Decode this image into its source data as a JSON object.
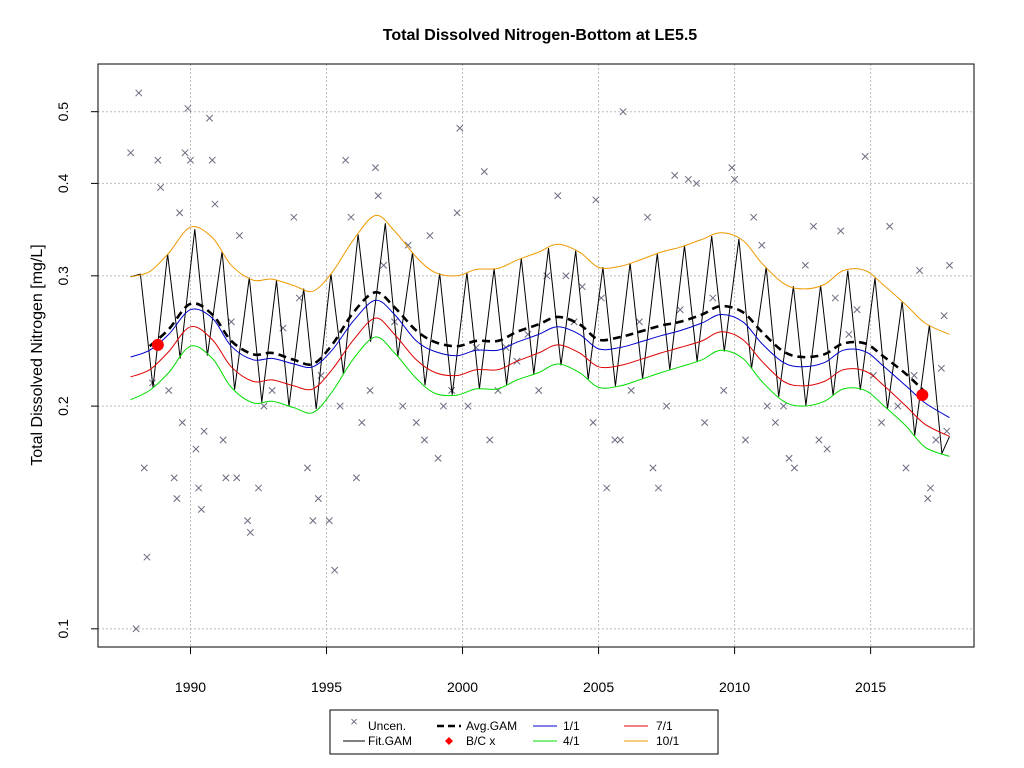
{
  "chart_data": {
    "type": "line",
    "title": "Total Dissolved Nitrogen-Bottom at LE5.5",
    "xlabel": "",
    "ylabel": "Total Dissolved Nitrogen [mg/L]",
    "x_scale": "linear",
    "y_scale": "log",
    "xlim": [
      1986.6,
      2018.8
    ],
    "ylim": [
      0.0945,
      0.58
    ],
    "x_ticks": [
      1990,
      1995,
      2000,
      2005,
      2010,
      2015
    ],
    "y_ticks": [
      0.1,
      0.2,
      0.3,
      0.4,
      0.5
    ],
    "y_tick_labels": [
      "0.1",
      "0.2",
      "0.3",
      "0.4",
      "0.5"
    ],
    "grid": true,
    "legend_placement": "bottom-center",
    "legend": {
      "uncen": "Uncen.",
      "fitgam": "Fit.GAM",
      "avggam": "Avg.GAM",
      "bcx": "B/C x",
      "s11": "1/1",
      "s41": "4/1",
      "s71": "7/1",
      "s101": "10/1"
    },
    "colors": {
      "uncen": "#6b6b80",
      "fit": "#000000",
      "avg": "#000000",
      "bc": "#ff0000",
      "jan": "#0000cc",
      "apr": "#00dd00",
      "jul": "#dd0000",
      "oct": "#ee9900",
      "grid": "#bebebe"
    },
    "smooth_x": [
      1987.8,
      1988.5,
      1989.2,
      1990.0,
      1990.8,
      1991.5,
      1992.3,
      1993.0,
      1993.8,
      1994.5,
      1995.2,
      1996.0,
      1996.8,
      1997.5,
      1998.3,
      1999.0,
      1999.8,
      2000.5,
      2001.3,
      2002.0,
      2002.8,
      2003.5,
      2004.3,
      2005.0,
      2005.8,
      2006.5,
      2007.3,
      2008.0,
      2008.8,
      2009.5,
      2010.3,
      2011.0,
      2011.8,
      2012.5,
      2013.3,
      2014.0,
      2014.8,
      2015.5,
      2016.3,
      2017.0,
      2017.9
    ],
    "series": [
      {
        "name": "Avg.GAM",
        "values": [
          null,
          0.241,
          0.254,
          0.275,
          0.266,
          0.245,
          0.235,
          0.236,
          0.231,
          0.228,
          0.242,
          0.268,
          0.285,
          0.272,
          0.253,
          0.244,
          0.241,
          0.245,
          0.245,
          0.252,
          0.258,
          0.264,
          0.258,
          0.246,
          0.248,
          0.252,
          0.257,
          0.26,
          0.266,
          0.273,
          0.268,
          0.252,
          0.237,
          0.233,
          0.235,
          0.243,
          0.243,
          0.233,
          0.221,
          0.209,
          null
        ]
      },
      {
        "name": "1/1",
        "values": [
          0.233,
          0.238,
          0.25,
          0.27,
          0.263,
          0.241,
          0.231,
          0.232,
          0.228,
          0.226,
          0.238,
          0.261,
          0.278,
          0.266,
          0.245,
          0.237,
          0.234,
          0.238,
          0.238,
          0.244,
          0.25,
          0.256,
          0.25,
          0.239,
          0.24,
          0.244,
          0.249,
          0.253,
          0.259,
          0.266,
          0.26,
          0.243,
          0.229,
          0.226,
          0.229,
          0.238,
          0.237,
          0.226,
          0.213,
          0.202,
          0.193
        ]
      },
      {
        "name": "4/1",
        "values": [
          0.204,
          0.21,
          0.222,
          0.241,
          0.232,
          0.212,
          0.202,
          0.203,
          0.199,
          0.196,
          0.209,
          0.232,
          0.248,
          0.236,
          0.218,
          0.208,
          0.207,
          0.211,
          0.211,
          0.217,
          0.222,
          0.228,
          0.222,
          0.212,
          0.213,
          0.217,
          0.222,
          0.226,
          0.231,
          0.238,
          0.232,
          0.216,
          0.203,
          0.2,
          0.203,
          0.211,
          0.21,
          0.2,
          0.188,
          0.176,
          0.171
        ]
      },
      {
        "name": "7/1",
        "values": [
          0.219,
          0.224,
          0.237,
          0.256,
          0.246,
          0.226,
          0.216,
          0.217,
          0.213,
          0.211,
          0.224,
          0.246,
          0.263,
          0.25,
          0.231,
          0.222,
          0.22,
          0.224,
          0.224,
          0.23,
          0.236,
          0.242,
          0.236,
          0.226,
          0.227,
          0.231,
          0.236,
          0.24,
          0.245,
          0.252,
          0.246,
          0.23,
          0.216,
          0.213,
          0.216,
          0.224,
          0.223,
          0.213,
          0.2,
          0.189,
          0.182
        ]
      },
      {
        "name": "10/1",
        "values": [
          0.299,
          0.304,
          0.322,
          0.349,
          0.338,
          0.31,
          0.296,
          0.297,
          0.291,
          0.286,
          0.303,
          0.336,
          0.362,
          0.345,
          0.318,
          0.303,
          0.3,
          0.306,
          0.307,
          0.315,
          0.323,
          0.331,
          0.323,
          0.308,
          0.309,
          0.315,
          0.323,
          0.328,
          0.336,
          0.343,
          0.335,
          0.312,
          0.293,
          0.288,
          0.292,
          0.305,
          0.305,
          0.291,
          0.274,
          0.259,
          0.25
        ]
      }
    ],
    "fit_gam": {
      "name": "Fit.GAM",
      "start_year": 1987.8,
      "end_year": 2017.9,
      "peak_phase": 0.16,
      "trough_phase": 0.62,
      "peak_series": "10/1",
      "trough_series": "4/1"
    },
    "bc_points": [
      {
        "x": 1988.8,
        "y": 0.242
      },
      {
        "x": 2016.9,
        "y": 0.207
      }
    ],
    "uncen_points": [
      {
        "x": 1987.8,
        "y": 0.44
      },
      {
        "x": 1988.1,
        "y": 0.53
      },
      {
        "x": 1988.3,
        "y": 0.165
      },
      {
        "x": 1988.4,
        "y": 0.125
      },
      {
        "x": 1988.6,
        "y": 0.215
      },
      {
        "x": 1988.8,
        "y": 0.43
      },
      {
        "x": 1988.9,
        "y": 0.395
      },
      {
        "x": 1988.0,
        "y": 0.1
      },
      {
        "x": 1989.2,
        "y": 0.21
      },
      {
        "x": 1989.4,
        "y": 0.16
      },
      {
        "x": 1989.5,
        "y": 0.15
      },
      {
        "x": 1989.6,
        "y": 0.365
      },
      {
        "x": 1989.8,
        "y": 0.44
      },
      {
        "x": 1989.9,
        "y": 0.505
      },
      {
        "x": 1990.0,
        "y": 0.43
      },
      {
        "x": 1990.2,
        "y": 0.175
      },
      {
        "x": 1990.4,
        "y": 0.145
      },
      {
        "x": 1990.5,
        "y": 0.185
      },
      {
        "x": 1990.7,
        "y": 0.49
      },
      {
        "x": 1990.8,
        "y": 0.43
      },
      {
        "x": 1990.9,
        "y": 0.375
      },
      {
        "x": 1989.7,
        "y": 0.19
      },
      {
        "x": 1990.3,
        "y": 0.155
      },
      {
        "x": 1991.2,
        "y": 0.18
      },
      {
        "x": 1991.3,
        "y": 0.16
      },
      {
        "x": 1991.5,
        "y": 0.26
      },
      {
        "x": 1991.7,
        "y": 0.16
      },
      {
        "x": 1991.8,
        "y": 0.34
      },
      {
        "x": 1992.1,
        "y": 0.14
      },
      {
        "x": 1992.2,
        "y": 0.135
      },
      {
        "x": 1992.5,
        "y": 0.155
      },
      {
        "x": 1992.7,
        "y": 0.2
      },
      {
        "x": 1993.0,
        "y": 0.21
      },
      {
        "x": 1993.4,
        "y": 0.255
      },
      {
        "x": 1993.8,
        "y": 0.36
      },
      {
        "x": 1994.0,
        "y": 0.28
      },
      {
        "x": 1994.3,
        "y": 0.165
      },
      {
        "x": 1994.5,
        "y": 0.14
      },
      {
        "x": 1994.7,
        "y": 0.15
      },
      {
        "x": 1994.8,
        "y": 0.22
      },
      {
        "x": 1995.1,
        "y": 0.14
      },
      {
        "x": 1995.3,
        "y": 0.12
      },
      {
        "x": 1995.5,
        "y": 0.2
      },
      {
        "x": 1995.7,
        "y": 0.43
      },
      {
        "x": 1995.9,
        "y": 0.36
      },
      {
        "x": 1996.1,
        "y": 0.16
      },
      {
        "x": 1996.3,
        "y": 0.19
      },
      {
        "x": 1996.6,
        "y": 0.21
      },
      {
        "x": 1996.8,
        "y": 0.42
      },
      {
        "x": 1996.9,
        "y": 0.385
      },
      {
        "x": 1997.1,
        "y": 0.31
      },
      {
        "x": 1997.5,
        "y": 0.26
      },
      {
        "x": 1997.8,
        "y": 0.2
      },
      {
        "x": 1998.0,
        "y": 0.33
      },
      {
        "x": 1998.3,
        "y": 0.19
      },
      {
        "x": 1998.6,
        "y": 0.18
      },
      {
        "x": 1998.8,
        "y": 0.34
      },
      {
        "x": 1999.1,
        "y": 0.17
      },
      {
        "x": 1999.3,
        "y": 0.2
      },
      {
        "x": 1999.6,
        "y": 0.21
      },
      {
        "x": 1999.8,
        "y": 0.365
      },
      {
        "x": 1999.9,
        "y": 0.475
      },
      {
        "x": 2000.2,
        "y": 0.2
      },
      {
        "x": 2000.5,
        "y": 0.24
      },
      {
        "x": 2000.8,
        "y": 0.415
      },
      {
        "x": 2001.0,
        "y": 0.18
      },
      {
        "x": 2001.3,
        "y": 0.21
      },
      {
        "x": 2001.6,
        "y": 0.24
      },
      {
        "x": 2002.0,
        "y": 0.23
      },
      {
        "x": 2002.4,
        "y": 0.25
      },
      {
        "x": 2002.8,
        "y": 0.21
      },
      {
        "x": 2003.1,
        "y": 0.3
      },
      {
        "x": 2003.5,
        "y": 0.385
      },
      {
        "x": 2003.8,
        "y": 0.3
      },
      {
        "x": 2004.1,
        "y": 0.26
      },
      {
        "x": 2004.4,
        "y": 0.29
      },
      {
        "x": 2004.8,
        "y": 0.19
      },
      {
        "x": 2004.9,
        "y": 0.38
      },
      {
        "x": 2005.1,
        "y": 0.28
      },
      {
        "x": 2005.3,
        "y": 0.155
      },
      {
        "x": 2005.6,
        "y": 0.18
      },
      {
        "x": 2005.8,
        "y": 0.18
      },
      {
        "x": 2005.9,
        "y": 0.5
      },
      {
        "x": 2006.2,
        "y": 0.21
      },
      {
        "x": 2006.5,
        "y": 0.26
      },
      {
        "x": 2006.8,
        "y": 0.36
      },
      {
        "x": 2007.0,
        "y": 0.165
      },
      {
        "x": 2007.2,
        "y": 0.155
      },
      {
        "x": 2007.5,
        "y": 0.2
      },
      {
        "x": 2007.8,
        "y": 0.41
      },
      {
        "x": 2008.0,
        "y": 0.27
      },
      {
        "x": 2008.3,
        "y": 0.405
      },
      {
        "x": 2008.6,
        "y": 0.4
      },
      {
        "x": 2008.9,
        "y": 0.19
      },
      {
        "x": 2009.2,
        "y": 0.28
      },
      {
        "x": 2009.6,
        "y": 0.21
      },
      {
        "x": 2009.9,
        "y": 0.42
      },
      {
        "x": 2010.0,
        "y": 0.405
      },
      {
        "x": 2010.4,
        "y": 0.18
      },
      {
        "x": 2010.7,
        "y": 0.36
      },
      {
        "x": 2011.0,
        "y": 0.33
      },
      {
        "x": 2011.2,
        "y": 0.2
      },
      {
        "x": 2011.5,
        "y": 0.19
      },
      {
        "x": 2011.8,
        "y": 0.2
      },
      {
        "x": 2012.0,
        "y": 0.17
      },
      {
        "x": 2012.2,
        "y": 0.165
      },
      {
        "x": 2012.6,
        "y": 0.31
      },
      {
        "x": 2012.9,
        "y": 0.35
      },
      {
        "x": 2013.1,
        "y": 0.18
      },
      {
        "x": 2013.4,
        "y": 0.175
      },
      {
        "x": 2013.7,
        "y": 0.28
      },
      {
        "x": 2013.9,
        "y": 0.345
      },
      {
        "x": 2014.2,
        "y": 0.25
      },
      {
        "x": 2014.5,
        "y": 0.27
      },
      {
        "x": 2014.8,
        "y": 0.435
      },
      {
        "x": 2015.1,
        "y": 0.22
      },
      {
        "x": 2015.4,
        "y": 0.19
      },
      {
        "x": 2015.7,
        "y": 0.35
      },
      {
        "x": 2016.0,
        "y": 0.2
      },
      {
        "x": 2016.3,
        "y": 0.165
      },
      {
        "x": 2016.6,
        "y": 0.22
      },
      {
        "x": 2016.8,
        "y": 0.305
      },
      {
        "x": 2017.1,
        "y": 0.15
      },
      {
        "x": 2017.2,
        "y": 0.155
      },
      {
        "x": 2017.4,
        "y": 0.18
      },
      {
        "x": 2017.6,
        "y": 0.225
      },
      {
        "x": 2017.7,
        "y": 0.265
      },
      {
        "x": 2017.9,
        "y": 0.31
      },
      {
        "x": 2017.8,
        "y": 0.185
      }
    ]
  }
}
